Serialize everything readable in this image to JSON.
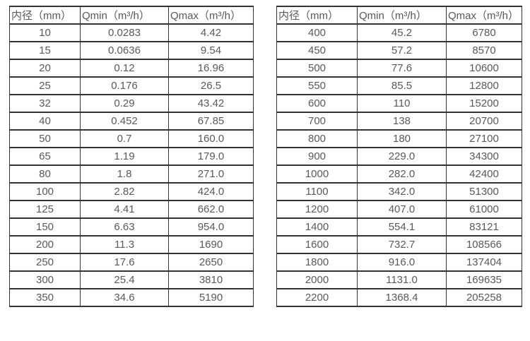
{
  "page": {
    "background_color": "#ffffff",
    "text_color": "#595959",
    "border_color": "#333333"
  },
  "tables": [
    {
      "name": "flow-table-dn10-350",
      "headers": [
        "内径（mm）",
        "Qmin（m³/h）",
        "Qmax（m³/h）"
      ],
      "rows": [
        [
          "10",
          "0.0283",
          "4.42"
        ],
        [
          "15",
          "0.0636",
          "9.54"
        ],
        [
          "20",
          "0.12",
          "16.96"
        ],
        [
          "25",
          "0.176",
          "26.5"
        ],
        [
          "32",
          "0.29",
          "43.42"
        ],
        [
          "40",
          "0.452",
          "67.85"
        ],
        [
          "50",
          "0.7",
          "160.0"
        ],
        [
          "65",
          "1.19",
          "179.0"
        ],
        [
          "80",
          "1.8",
          "271.0"
        ],
        [
          "100",
          "2.82",
          "424.0"
        ],
        [
          "125",
          "4.41",
          "662.0"
        ],
        [
          "150",
          "6.63",
          "954.0"
        ],
        [
          "200",
          "11.3",
          "1690"
        ],
        [
          "250",
          "17.6",
          "2650"
        ],
        [
          "300",
          "25.4",
          "3810"
        ],
        [
          "350",
          "34.6",
          "5190"
        ]
      ]
    },
    {
      "name": "flow-table-dn400-2200",
      "headers": [
        "内径（mm）",
        "Qmin（m³/h）",
        "Qmax（m³/h）"
      ],
      "rows": [
        [
          "400",
          "45.2",
          "6780"
        ],
        [
          "450",
          "57.2",
          "8570"
        ],
        [
          "500",
          "77.6",
          "10600"
        ],
        [
          "550",
          "85.5",
          "12800"
        ],
        [
          "600",
          "110",
          "15200"
        ],
        [
          "700",
          "138",
          "20700"
        ],
        [
          "800",
          "180",
          "27100"
        ],
        [
          "900",
          "229.0",
          "34300"
        ],
        [
          "1000",
          "282.0",
          "42400"
        ],
        [
          "1100",
          "342.0",
          "51300"
        ],
        [
          "1200",
          "407.0",
          "61000"
        ],
        [
          "1400",
          "554.1",
          "83121"
        ],
        [
          "1600",
          "732.7",
          "108566"
        ],
        [
          "1800",
          "916.0",
          "137404"
        ],
        [
          "2000",
          "1131.0",
          "169635"
        ],
        [
          "2200",
          "1368.4",
          "205258"
        ]
      ]
    }
  ]
}
